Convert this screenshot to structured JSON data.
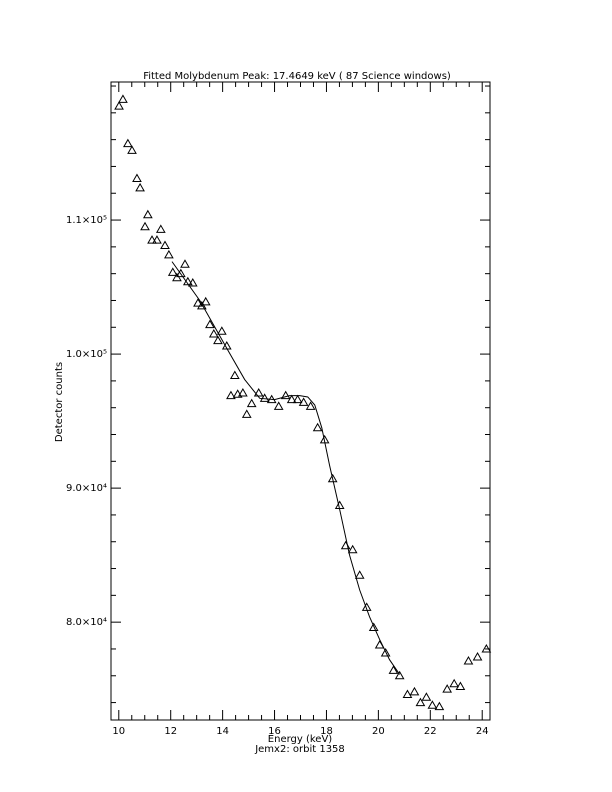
{
  "chart_data": {
    "type": "scatter",
    "title": "Fitted Molybdenum Peak:       17.4649 keV (      87 Science windows)",
    "x_label": "Energy (keV)",
    "y_label": "Detector counts",
    "footnote": "Jemx2: orbit 1358",
    "xlim": [
      9.7,
      24.3
    ],
    "ylim": [
      72700,
      120300
    ],
    "xticks": [
      10,
      12,
      14,
      16,
      18,
      20,
      22,
      24
    ],
    "yticks": [
      {
        "value": 80000,
        "label": "8.0×10⁴"
      },
      {
        "value": 90000,
        "label": "9.0×10⁴"
      },
      {
        "value": 100000,
        "label": "1.0×10⁵"
      },
      {
        "value": 110000,
        "label": "1.1×10⁵"
      }
    ],
    "xminorticks": [
      10.5,
      11,
      11.5,
      12.5,
      13,
      13.5,
      14.5,
      15,
      15.5,
      16.5,
      17,
      17.5,
      18.5,
      19,
      19.5,
      20.5,
      21,
      21.5,
      22.5,
      23,
      23.5
    ],
    "yminorticks": [
      74000,
      76000,
      78000,
      82000,
      84000,
      86000,
      88000,
      92000,
      94000,
      96000,
      98000,
      102000,
      104000,
      106000,
      108000,
      112000,
      114000,
      116000,
      118000,
      120000
    ],
    "series": [
      {
        "type": "scatter",
        "marker": "triangle",
        "color": "#000000",
        "x": [
          10.01,
          10.16,
          10.35,
          10.51,
          10.7,
          10.82,
          11.01,
          11.12,
          11.28,
          11.47,
          11.62,
          11.78,
          11.93,
          12.08,
          12.24,
          12.39,
          12.55,
          12.66,
          12.85,
          13.05,
          13.2,
          13.35,
          13.51,
          13.66,
          13.82,
          13.97,
          14.16,
          14.32,
          14.47,
          14.58,
          14.78,
          14.93,
          15.12,
          15.39,
          15.62,
          15.89,
          16.16,
          16.43,
          16.66,
          16.89,
          17.12,
          17.39,
          17.66,
          17.93,
          18.24,
          18.51,
          18.74,
          19.01,
          19.28,
          19.55,
          19.82,
          20.05,
          20.28,
          20.58,
          20.82,
          21.12,
          21.39,
          21.62,
          21.85,
          22.08,
          22.35,
          22.65,
          22.92,
          23.16,
          23.47,
          23.82,
          24.16
        ],
        "values": [
          118500,
          119000,
          115700,
          115200,
          113100,
          112400,
          109500,
          110400,
          108500,
          108500,
          109300,
          108100,
          107400,
          106100,
          105700,
          106000,
          106700,
          105400,
          105300,
          103800,
          103600,
          103900,
          102200,
          101500,
          101000,
          101700,
          100600,
          96900,
          98400,
          97000,
          97100,
          95500,
          96300,
          97100,
          96700,
          96600,
          96100,
          96900,
          96600,
          96600,
          96400,
          96100,
          94500,
          93600,
          90700,
          88700,
          85700,
          85400,
          83500,
          81100,
          79600,
          78300,
          77700,
          76400,
          76000,
          74600,
          74800,
          74000,
          74400,
          73800,
          73700,
          75000,
          75400,
          75200,
          77100,
          77400,
          78000
        ]
      },
      {
        "type": "line",
        "color": "#000000",
        "x": [
          12.05,
          13.12,
          14.2,
          14.85,
          15.43,
          16.0,
          16.58,
          16.97,
          17.28,
          17.55,
          17.82,
          18.12,
          18.51,
          18.89,
          19.28,
          19.66,
          20.05,
          20.43,
          20.82
        ],
        "values": [
          106900,
          104000,
          100300,
          98100,
          96700,
          96600,
          96900,
          96900,
          96800,
          96200,
          94500,
          91700,
          88400,
          85000,
          82400,
          80400,
          78700,
          77200,
          76100
        ]
      }
    ]
  }
}
